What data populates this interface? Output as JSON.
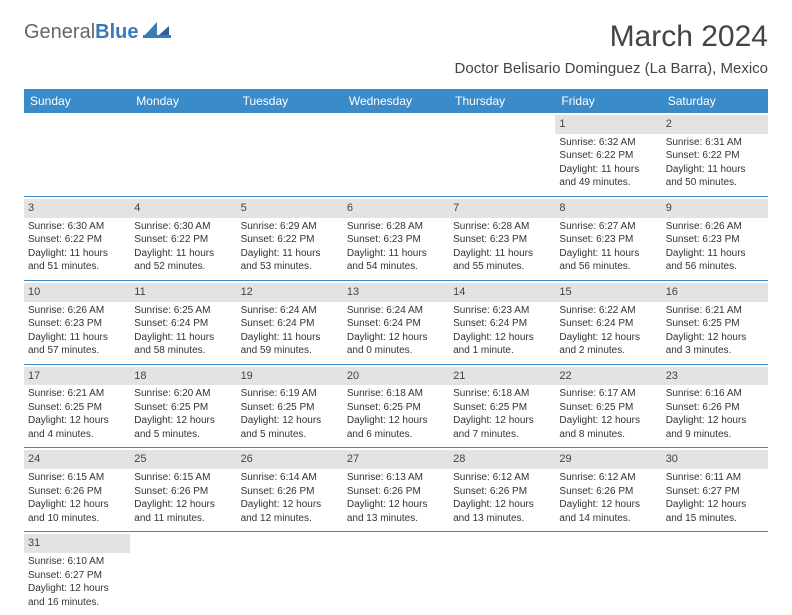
{
  "logo": {
    "part1": "General",
    "part2": "Blue"
  },
  "title": "March 2024",
  "location": "Doctor Belisario Dominguez (La Barra), Mexico",
  "colors": {
    "header_bg": "#3a8bc9",
    "header_text": "#ffffff",
    "daynum_bg": "#e3e3e3",
    "border": "#3a8bc9",
    "logo_gray": "#666666",
    "logo_blue": "#3a7ab8"
  },
  "fonts": {
    "title_size": 30,
    "location_size": 15,
    "dayhead_size": 12,
    "cell_size": 10
  },
  "day_headers": [
    "Sunday",
    "Monday",
    "Tuesday",
    "Wednesday",
    "Thursday",
    "Friday",
    "Saturday"
  ],
  "weeks": [
    [
      {
        "n": "",
        "empty": true
      },
      {
        "n": "",
        "empty": true
      },
      {
        "n": "",
        "empty": true
      },
      {
        "n": "",
        "empty": true
      },
      {
        "n": "",
        "empty": true
      },
      {
        "n": "1",
        "sr": "Sunrise: 6:32 AM",
        "ss": "Sunset: 6:22 PM",
        "d1": "Daylight: 11 hours",
        "d2": "and 49 minutes."
      },
      {
        "n": "2",
        "sr": "Sunrise: 6:31 AM",
        "ss": "Sunset: 6:22 PM",
        "d1": "Daylight: 11 hours",
        "d2": "and 50 minutes."
      }
    ],
    [
      {
        "n": "3",
        "sr": "Sunrise: 6:30 AM",
        "ss": "Sunset: 6:22 PM",
        "d1": "Daylight: 11 hours",
        "d2": "and 51 minutes."
      },
      {
        "n": "4",
        "sr": "Sunrise: 6:30 AM",
        "ss": "Sunset: 6:22 PM",
        "d1": "Daylight: 11 hours",
        "d2": "and 52 minutes."
      },
      {
        "n": "5",
        "sr": "Sunrise: 6:29 AM",
        "ss": "Sunset: 6:22 PM",
        "d1": "Daylight: 11 hours",
        "d2": "and 53 minutes."
      },
      {
        "n": "6",
        "sr": "Sunrise: 6:28 AM",
        "ss": "Sunset: 6:23 PM",
        "d1": "Daylight: 11 hours",
        "d2": "and 54 minutes."
      },
      {
        "n": "7",
        "sr": "Sunrise: 6:28 AM",
        "ss": "Sunset: 6:23 PM",
        "d1": "Daylight: 11 hours",
        "d2": "and 55 minutes."
      },
      {
        "n": "8",
        "sr": "Sunrise: 6:27 AM",
        "ss": "Sunset: 6:23 PM",
        "d1": "Daylight: 11 hours",
        "d2": "and 56 minutes."
      },
      {
        "n": "9",
        "sr": "Sunrise: 6:26 AM",
        "ss": "Sunset: 6:23 PM",
        "d1": "Daylight: 11 hours",
        "d2": "and 56 minutes."
      }
    ],
    [
      {
        "n": "10",
        "sr": "Sunrise: 6:26 AM",
        "ss": "Sunset: 6:23 PM",
        "d1": "Daylight: 11 hours",
        "d2": "and 57 minutes."
      },
      {
        "n": "11",
        "sr": "Sunrise: 6:25 AM",
        "ss": "Sunset: 6:24 PM",
        "d1": "Daylight: 11 hours",
        "d2": "and 58 minutes."
      },
      {
        "n": "12",
        "sr": "Sunrise: 6:24 AM",
        "ss": "Sunset: 6:24 PM",
        "d1": "Daylight: 11 hours",
        "d2": "and 59 minutes."
      },
      {
        "n": "13",
        "sr": "Sunrise: 6:24 AM",
        "ss": "Sunset: 6:24 PM",
        "d1": "Daylight: 12 hours",
        "d2": "and 0 minutes."
      },
      {
        "n": "14",
        "sr": "Sunrise: 6:23 AM",
        "ss": "Sunset: 6:24 PM",
        "d1": "Daylight: 12 hours",
        "d2": "and 1 minute."
      },
      {
        "n": "15",
        "sr": "Sunrise: 6:22 AM",
        "ss": "Sunset: 6:24 PM",
        "d1": "Daylight: 12 hours",
        "d2": "and 2 minutes."
      },
      {
        "n": "16",
        "sr": "Sunrise: 6:21 AM",
        "ss": "Sunset: 6:25 PM",
        "d1": "Daylight: 12 hours",
        "d2": "and 3 minutes."
      }
    ],
    [
      {
        "n": "17",
        "sr": "Sunrise: 6:21 AM",
        "ss": "Sunset: 6:25 PM",
        "d1": "Daylight: 12 hours",
        "d2": "and 4 minutes."
      },
      {
        "n": "18",
        "sr": "Sunrise: 6:20 AM",
        "ss": "Sunset: 6:25 PM",
        "d1": "Daylight: 12 hours",
        "d2": "and 5 minutes."
      },
      {
        "n": "19",
        "sr": "Sunrise: 6:19 AM",
        "ss": "Sunset: 6:25 PM",
        "d1": "Daylight: 12 hours",
        "d2": "and 5 minutes."
      },
      {
        "n": "20",
        "sr": "Sunrise: 6:18 AM",
        "ss": "Sunset: 6:25 PM",
        "d1": "Daylight: 12 hours",
        "d2": "and 6 minutes."
      },
      {
        "n": "21",
        "sr": "Sunrise: 6:18 AM",
        "ss": "Sunset: 6:25 PM",
        "d1": "Daylight: 12 hours",
        "d2": "and 7 minutes."
      },
      {
        "n": "22",
        "sr": "Sunrise: 6:17 AM",
        "ss": "Sunset: 6:25 PM",
        "d1": "Daylight: 12 hours",
        "d2": "and 8 minutes."
      },
      {
        "n": "23",
        "sr": "Sunrise: 6:16 AM",
        "ss": "Sunset: 6:26 PM",
        "d1": "Daylight: 12 hours",
        "d2": "and 9 minutes."
      }
    ],
    [
      {
        "n": "24",
        "sr": "Sunrise: 6:15 AM",
        "ss": "Sunset: 6:26 PM",
        "d1": "Daylight: 12 hours",
        "d2": "and 10 minutes."
      },
      {
        "n": "25",
        "sr": "Sunrise: 6:15 AM",
        "ss": "Sunset: 6:26 PM",
        "d1": "Daylight: 12 hours",
        "d2": "and 11 minutes."
      },
      {
        "n": "26",
        "sr": "Sunrise: 6:14 AM",
        "ss": "Sunset: 6:26 PM",
        "d1": "Daylight: 12 hours",
        "d2": "and 12 minutes."
      },
      {
        "n": "27",
        "sr": "Sunrise: 6:13 AM",
        "ss": "Sunset: 6:26 PM",
        "d1": "Daylight: 12 hours",
        "d2": "and 13 minutes."
      },
      {
        "n": "28",
        "sr": "Sunrise: 6:12 AM",
        "ss": "Sunset: 6:26 PM",
        "d1": "Daylight: 12 hours",
        "d2": "and 13 minutes."
      },
      {
        "n": "29",
        "sr": "Sunrise: 6:12 AM",
        "ss": "Sunset: 6:26 PM",
        "d1": "Daylight: 12 hours",
        "d2": "and 14 minutes."
      },
      {
        "n": "30",
        "sr": "Sunrise: 6:11 AM",
        "ss": "Sunset: 6:27 PM",
        "d1": "Daylight: 12 hours",
        "d2": "and 15 minutes."
      }
    ],
    [
      {
        "n": "31",
        "sr": "Sunrise: 6:10 AM",
        "ss": "Sunset: 6:27 PM",
        "d1": "Daylight: 12 hours",
        "d2": "and 16 minutes."
      },
      {
        "n": "",
        "empty": true
      },
      {
        "n": "",
        "empty": true
      },
      {
        "n": "",
        "empty": true
      },
      {
        "n": "",
        "empty": true
      },
      {
        "n": "",
        "empty": true
      },
      {
        "n": "",
        "empty": true
      }
    ]
  ]
}
